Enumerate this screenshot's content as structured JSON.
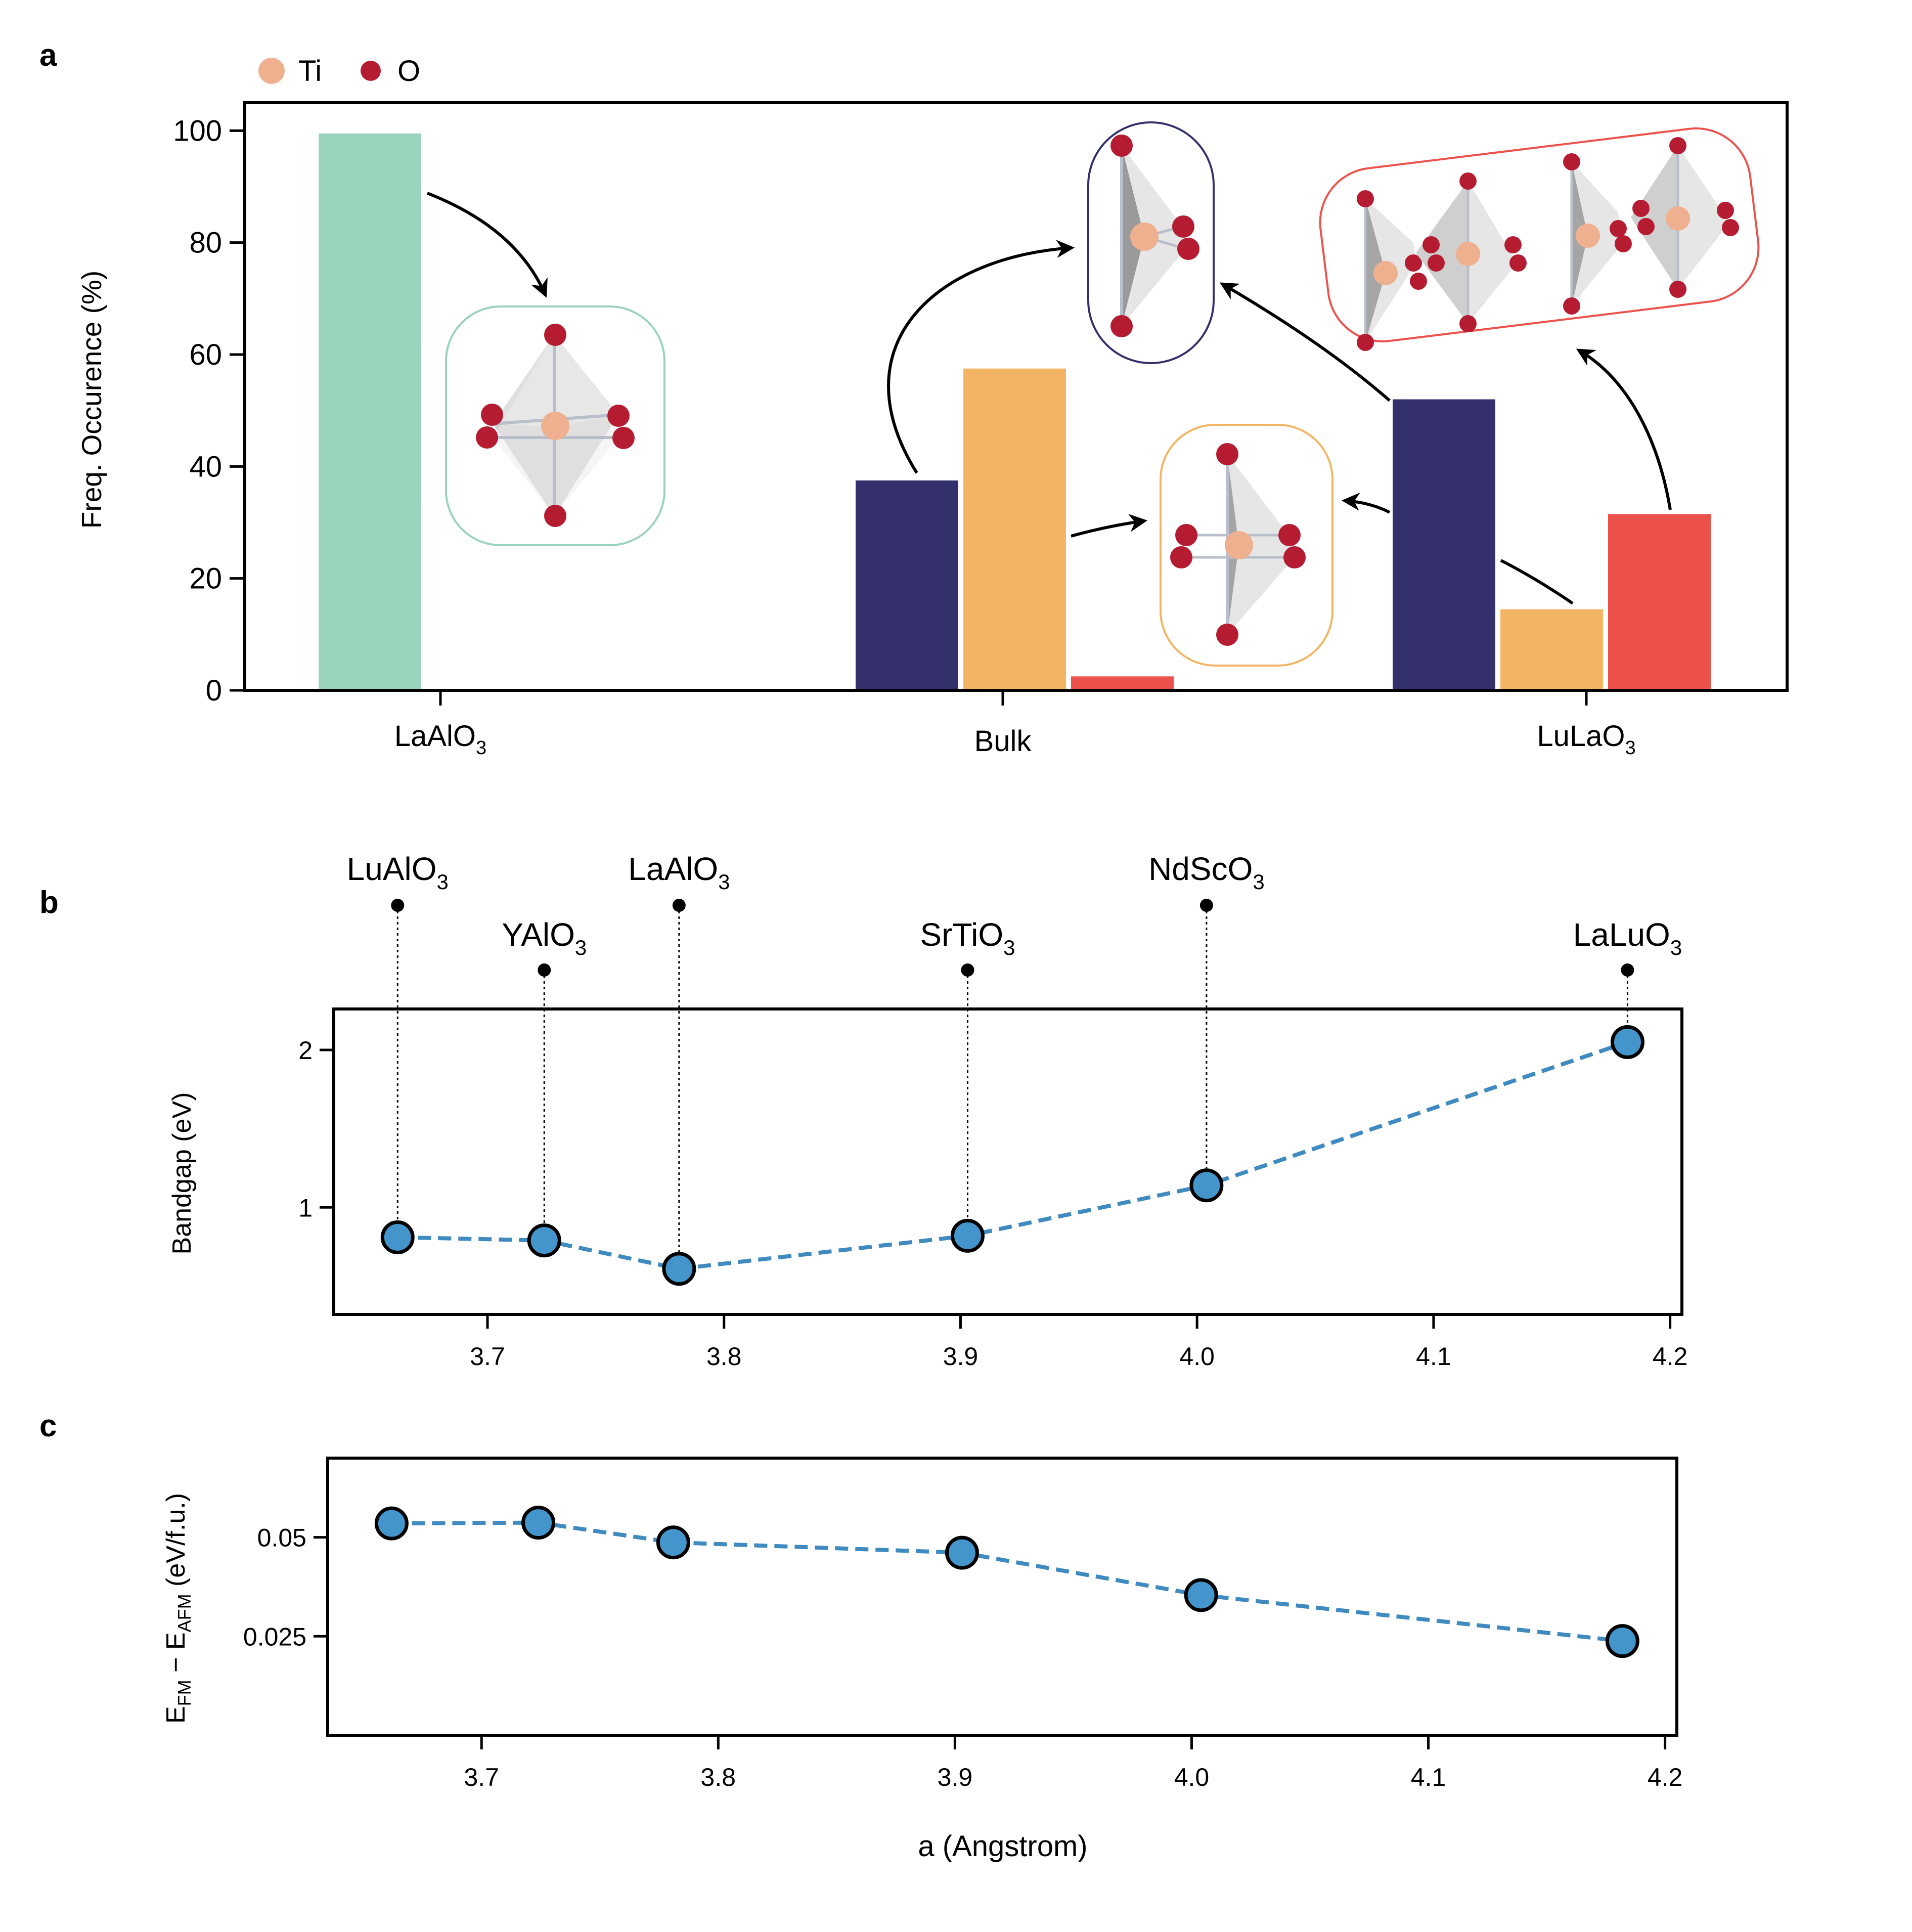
{
  "colors": {
    "lao": "#99D3BB",
    "navy": "#33306B",
    "orange": "#F3B563",
    "red": "#EC514C",
    "ti": "#EFB08F",
    "o": "#B51C31",
    "series": "#3F8ABF",
    "marker": "#4495CB"
  },
  "chart_data": [
    {
      "id": "a",
      "panel_label": "a",
      "type": "bar",
      "ylabel": "Freq. Occurence (%)",
      "ylim": [
        0,
        105
      ],
      "yticks": [
        "0",
        "20",
        "40",
        "60",
        "80",
        "100"
      ],
      "legend": {
        "placement": "top-left",
        "items": [
          {
            "label": "Ti",
            "color": "#EFB08F"
          },
          {
            "label": "O",
            "color": "#B51C31"
          }
        ]
      },
      "categories": [
        {
          "label": "LaAlO",
          "sub": "3"
        },
        {
          "label": "Bulk",
          "sub": ""
        },
        {
          "label": "LuLaO",
          "sub": "3"
        }
      ],
      "bars": [
        {
          "category": "LaAlO3",
          "color": "#99D3BB",
          "value": 99.5
        },
        {
          "category": "Bulk",
          "color": "#33306B",
          "value": 37.5
        },
        {
          "category": "Bulk",
          "color": "#F3B563",
          "value": 57.5
        },
        {
          "category": "Bulk",
          "color": "#EC514C",
          "value": 2.5
        },
        {
          "category": "LuLaO3",
          "color": "#33306B",
          "value": 52.0
        },
        {
          "category": "LuLaO3",
          "color": "#F3B563",
          "value": 14.5
        },
        {
          "category": "LuLaO3",
          "color": "#EC514C",
          "value": 31.5
        }
      ]
    },
    {
      "id": "b",
      "panel_label": "b",
      "type": "line",
      "ylabel": "Bandgap (eV)",
      "xlim": [
        3.635,
        4.205
      ],
      "ylim": [
        0.32,
        2.26
      ],
      "xticks": [
        "3.7",
        "3.8",
        "3.9",
        "4.0",
        "4.1",
        "4.2"
      ],
      "yticks": [
        "1",
        "2"
      ],
      "x": [
        3.662,
        3.724,
        3.781,
        3.903,
        4.004,
        4.182
      ],
      "y": [
        0.81,
        0.79,
        0.61,
        0.82,
        1.14,
        2.05
      ],
      "materials": [
        {
          "name": "LuAlO",
          "sub": "3",
          "x": 3.662,
          "row": "upper"
        },
        {
          "name": "YAlO",
          "sub": "3",
          "x": 3.724,
          "row": "lower"
        },
        {
          "name": "LaAlO",
          "sub": "3",
          "x": 3.781,
          "row": "upper"
        },
        {
          "name": "SrTiO",
          "sub": "3",
          "x": 3.903,
          "row": "lower"
        },
        {
          "name": "NdScO",
          "sub": "3",
          "x": 4.004,
          "row": "upper"
        },
        {
          "name": "LaLuO",
          "sub": "3",
          "x": 4.182,
          "row": "lower"
        }
      ]
    },
    {
      "id": "c",
      "panel_label": "c",
      "type": "line",
      "xlabel": "a (Angstrom)",
      "ylabel": {
        "e1": "E",
        "s1": "FM",
        "mid": " − E",
        "s2": "AFM",
        "tail": " (eV/f.u.)"
      },
      "xlim": [
        3.635,
        4.205
      ],
      "ylim": [
        0.0,
        0.07
      ],
      "xticks": [
        "3.7",
        "3.8",
        "3.9",
        "4.0",
        "4.1",
        "4.2"
      ],
      "yticks": [
        "0.025",
        "0.05"
      ],
      "x": [
        3.662,
        3.724,
        3.781,
        3.903,
        4.004,
        4.182
      ],
      "y": [
        0.0535,
        0.0537,
        0.0487,
        0.0461,
        0.0354,
        0.0238
      ]
    }
  ]
}
